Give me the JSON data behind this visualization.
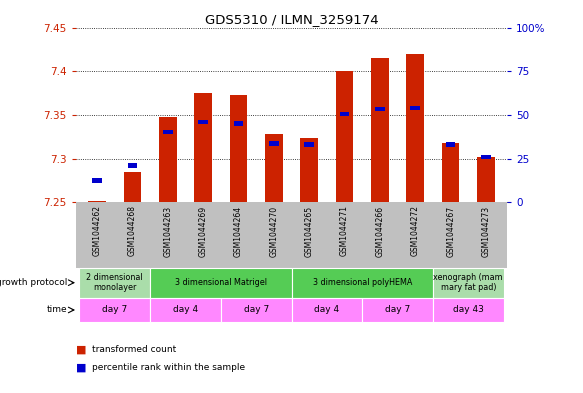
{
  "title": "GDS5310 / ILMN_3259174",
  "samples": [
    "GSM1044262",
    "GSM1044268",
    "GSM1044263",
    "GSM1044269",
    "GSM1044264",
    "GSM1044270",
    "GSM1044265",
    "GSM1044271",
    "GSM1044266",
    "GSM1044272",
    "GSM1044267",
    "GSM1044273"
  ],
  "red_values": [
    7.251,
    7.285,
    7.348,
    7.375,
    7.373,
    7.328,
    7.324,
    7.4,
    7.415,
    7.42,
    7.318,
    7.302
  ],
  "blue_values": [
    7.275,
    7.292,
    7.33,
    7.342,
    7.34,
    7.317,
    7.316,
    7.351,
    7.357,
    7.358,
    7.316,
    7.302
  ],
  "ymin": 7.25,
  "ymax": 7.45,
  "yticks": [
    7.25,
    7.3,
    7.35,
    7.4,
    7.45
  ],
  "y2ticks": [
    0,
    25,
    50,
    75,
    100
  ],
  "y2labels": [
    "0",
    "25",
    "50",
    "75",
    "100%"
  ],
  "bar_color": "#CC2200",
  "blue_color": "#0000CC",
  "growth_protocol_groups": [
    {
      "label": "2 dimensional\nmonolayer",
      "start": 0,
      "end": 2,
      "color": "#AADDAA"
    },
    {
      "label": "3 dimensional Matrigel",
      "start": 2,
      "end": 6,
      "color": "#55CC55"
    },
    {
      "label": "3 dimensional polyHEMA",
      "start": 6,
      "end": 10,
      "color": "#55CC55"
    },
    {
      "label": "xenograph (mam\nmary fat pad)",
      "start": 10,
      "end": 12,
      "color": "#AADDAA"
    }
  ],
  "time_groups": [
    {
      "label": "day 7",
      "start": 0,
      "end": 2
    },
    {
      "label": "day 4",
      "start": 2,
      "end": 4
    },
    {
      "label": "day 7",
      "start": 4,
      "end": 6
    },
    {
      "label": "day 4",
      "start": 6,
      "end": 8
    },
    {
      "label": "day 7",
      "start": 8,
      "end": 10
    },
    {
      "label": "day 43",
      "start": 10,
      "end": 12
    }
  ],
  "time_color": "#FF88FF",
  "sample_bg_color": "#C0C0C0",
  "bar_width": 0.5,
  "left_label_color": "#CC2200",
  "right_label_color": "#0000CC"
}
